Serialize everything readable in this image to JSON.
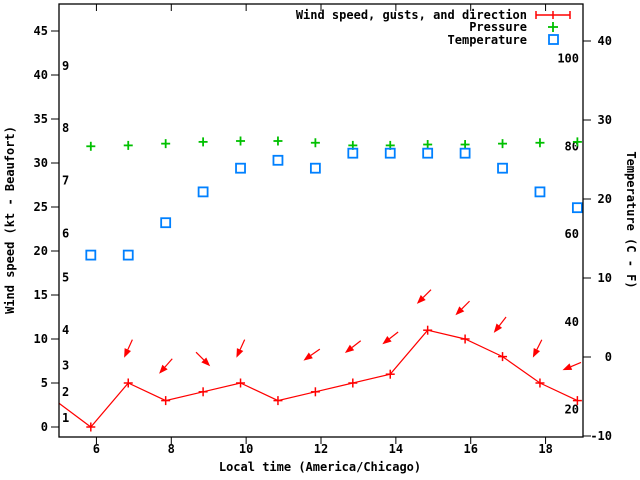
{
  "chart_data": {
    "type": "line",
    "title": "",
    "xlabel": "Local time (America/Chicago)",
    "ylabel": "Wind speed (kt - Beaufort)",
    "y2label": "Temperature (C - F)",
    "x_hours": [
      5.85,
      6.85,
      7.85,
      8.85,
      9.85,
      10.85,
      11.85,
      12.85,
      13.85,
      14.85,
      15.85,
      16.85,
      17.85,
      18.85
    ],
    "series": [
      {
        "name": "Wind speed, gusts, and direction",
        "color": "#ff0000",
        "marker": "plus-errorbar",
        "axis": "left-kt",
        "values_kt": [
          0,
          5,
          3,
          4,
          5,
          3,
          4,
          5,
          6,
          11,
          10,
          8,
          5,
          3
        ],
        "edge_start": {
          "t": 5.0,
          "kt": 2.7
        }
      },
      {
        "name": "Pressure",
        "color": "#00c000",
        "marker": "plus",
        "axis": "unlabeled",
        "values_y_on_kt_axis": [
          31.9,
          32.0,
          32.2,
          32.4,
          32.5,
          32.5,
          32.3,
          32.0,
          32.0,
          32.1,
          32.1,
          32.2,
          32.3,
          32.4
        ]
      },
      {
        "name": "Temperature",
        "color": "#0080ff",
        "marker": "open-square",
        "axis": "right-celsius",
        "values_c": [
          12.9,
          12.9,
          17.0,
          20.9,
          23.9,
          24.9,
          23.9,
          25.8,
          25.8,
          25.8,
          25.8,
          23.9,
          20.9,
          18.9
        ]
      }
    ],
    "wind_direction_arrows": [
      {
        "t": 6.85,
        "y_kt": 8.9,
        "dx": -5,
        "dy": 11
      },
      {
        "t": 7.85,
        "y_kt": 6.9,
        "dx": -7,
        "dy": 8
      },
      {
        "t": 8.85,
        "y_kt": 7.7,
        "dx": 9,
        "dy": 9
      },
      {
        "t": 9.85,
        "y_kt": 8.9,
        "dx": -5,
        "dy": 11
      },
      {
        "t": 11.75,
        "y_kt": 8.2,
        "dx": -10,
        "dy": 7
      },
      {
        "t": 12.85,
        "y_kt": 9.1,
        "dx": -9,
        "dy": 7
      },
      {
        "t": 13.85,
        "y_kt": 10.1,
        "dx": -9,
        "dy": 7
      },
      {
        "t": 14.75,
        "y_kt": 14.8,
        "dx": -8,
        "dy": 8
      },
      {
        "t": 15.78,
        "y_kt": 13.5,
        "dx": -8,
        "dy": 8
      },
      {
        "t": 16.78,
        "y_kt": 11.6,
        "dx": -7,
        "dy": 9
      },
      {
        "t": 17.78,
        "y_kt": 8.9,
        "dx": -5,
        "dy": 10
      },
      {
        "t": 18.7,
        "y_kt": 6.9,
        "dx": -12,
        "dy": 5
      }
    ],
    "axes": {
      "x_range": [
        5,
        19
      ],
      "x_tick_labels": [
        "6",
        "8",
        "10",
        "12",
        "14",
        "16",
        "18"
      ],
      "x_tick_values": [
        6,
        8,
        10,
        12,
        14,
        16,
        18
      ],
      "y_left_tick_labels": [
        "0",
        "5",
        "10",
        "15",
        "20",
        "25",
        "30",
        "35",
        "40",
        "45"
      ],
      "y_left_tick_values": [
        0,
        5,
        10,
        15,
        20,
        25,
        30,
        35,
        40,
        45
      ],
      "beaufort_labels": [
        {
          "label": "1",
          "kt": 1
        },
        {
          "label": "2",
          "kt": 4
        },
        {
          "label": "3",
          "kt": 7
        },
        {
          "label": "4",
          "kt": 11
        },
        {
          "label": "5",
          "kt": 17
        },
        {
          "label": "6",
          "kt": 22
        },
        {
          "label": "7",
          "kt": 28
        },
        {
          "label": "8",
          "kt": 34
        },
        {
          "label": "9",
          "kt": 41
        }
      ],
      "y_right_tick_labels": [
        "-10",
        "0",
        "10",
        "20",
        "30",
        "40"
      ],
      "y_right_tick_values_c": [
        -10,
        0,
        10,
        20,
        30,
        40
      ],
      "fahrenheit_labels": [
        {
          "label": "20",
          "f": 20
        },
        {
          "label": "40",
          "f": 40
        },
        {
          "label": "60",
          "f": 60
        },
        {
          "label": "80",
          "f": 80
        },
        {
          "label": "100",
          "f": 100
        }
      ],
      "grid": false
    },
    "legend_position": "top-right-inside",
    "colors": {
      "wind": "#ff0000",
      "pressure": "#00c000",
      "temperature": "#0080ff",
      "axis": "#000000",
      "background": "#ffffff"
    }
  }
}
